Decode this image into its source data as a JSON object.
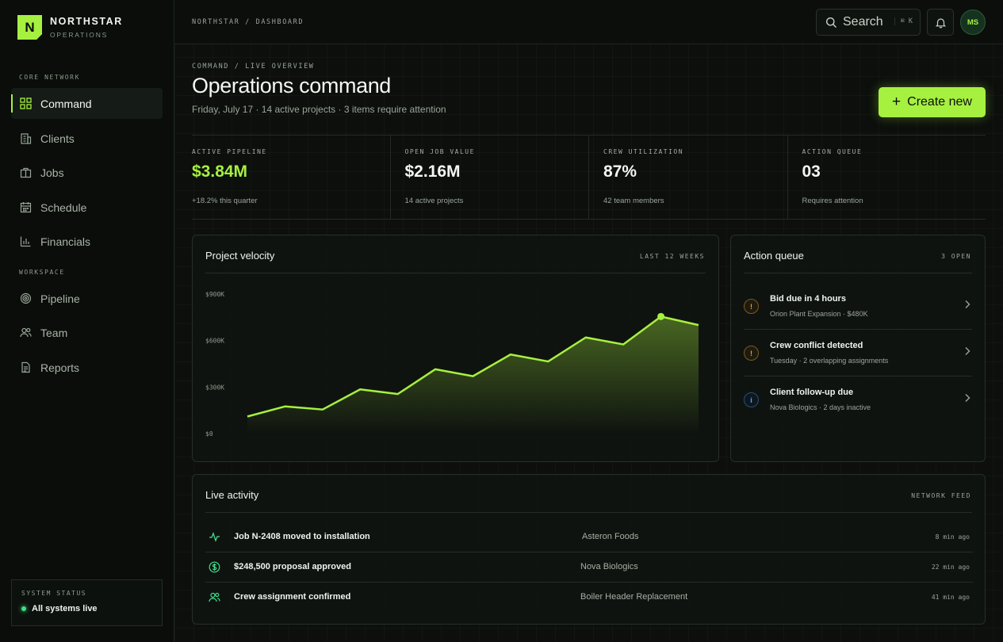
{
  "brand": {
    "logo_letter": "N",
    "name": "NORTHSTAR",
    "sub": "OPERATIONS",
    "accent": "#a6f040"
  },
  "sidebar": {
    "section_core": "CORE NETWORK",
    "section_workspace": "WORKSPACE",
    "items": [
      {
        "label": "Command",
        "icon": "grid-icon",
        "active": true
      },
      {
        "label": "Clients",
        "icon": "building-icon"
      },
      {
        "label": "Jobs",
        "icon": "briefcase-icon"
      },
      {
        "label": "Schedule",
        "icon": "calendar-icon"
      },
      {
        "label": "Financials",
        "icon": "bar-chart-icon"
      },
      {
        "label": "Pipeline",
        "icon": "target-icon"
      },
      {
        "label": "Team",
        "icon": "users-icon"
      },
      {
        "label": "Reports",
        "icon": "document-icon"
      }
    ],
    "status": {
      "label": "SYSTEM STATUS",
      "value": "All systems live",
      "color": "#3fe08a"
    }
  },
  "topbar": {
    "breadcrumb": "NORTHSTAR / DASHBOARD",
    "search_label": "Search",
    "search_shortcut": "⌘ K",
    "avatar_initials": "MS"
  },
  "header": {
    "eyebrow": "COMMAND / LIVE OVERVIEW",
    "title": "Operations command",
    "subtitle": "Friday, July 17 · 14 active projects · 3 items require attention",
    "create_label": "Create new"
  },
  "kpis": [
    {
      "label": "ACTIVE PIPELINE",
      "value": "$3.84M",
      "note": "+18.2% this quarter",
      "accent": true
    },
    {
      "label": "OPEN JOB VALUE",
      "value": "$2.16M",
      "note": "14 active projects"
    },
    {
      "label": "CREW UTILIZATION",
      "value": "87%",
      "note": "42 team members"
    },
    {
      "label": "ACTION QUEUE",
      "value": "03",
      "note": "Requires attention"
    }
  ],
  "velocity": {
    "title": "Project velocity",
    "meta": "LAST 12 WEEKS",
    "chart_data": {
      "type": "area",
      "yticks": [
        "$900K",
        "$600K",
        "$300K",
        "$0"
      ],
      "ylim": [
        0,
        900000
      ],
      "values": [
        110000,
        175000,
        155000,
        285000,
        255000,
        415000,
        370000,
        510000,
        465000,
        620000,
        575000,
        755000,
        700000
      ],
      "highlight_index": 11,
      "color": "#a6f040"
    }
  },
  "queue": {
    "title": "Action queue",
    "meta": "3 OPEN",
    "items": [
      {
        "title": "Bid due in 4 hours",
        "sub": "Orion Plant Expansion · $480K",
        "badge": "!",
        "kind": "warn"
      },
      {
        "title": "Crew conflict detected",
        "sub": "Tuesday · 2 overlapping assignments",
        "badge": "!",
        "kind": "warn"
      },
      {
        "title": "Client follow-up due",
        "sub": "Nova Biologics · 2 days inactive",
        "badge": "i",
        "kind": "info"
      }
    ]
  },
  "activity": {
    "title": "Live activity",
    "meta": "NETWORK FEED",
    "rows": [
      {
        "icon": "pulse-icon",
        "title": "Job N-2408 moved to installation",
        "client": "Asteron Foods",
        "time": "8 min ago"
      },
      {
        "icon": "dollar-icon",
        "title": "$248,500 proposal approved",
        "client": "Nova Biologics",
        "time": "22 min ago"
      },
      {
        "icon": "users-icon",
        "title": "Crew assignment confirmed",
        "client": "Boiler Header Replacement",
        "time": "41 min ago"
      }
    ]
  }
}
